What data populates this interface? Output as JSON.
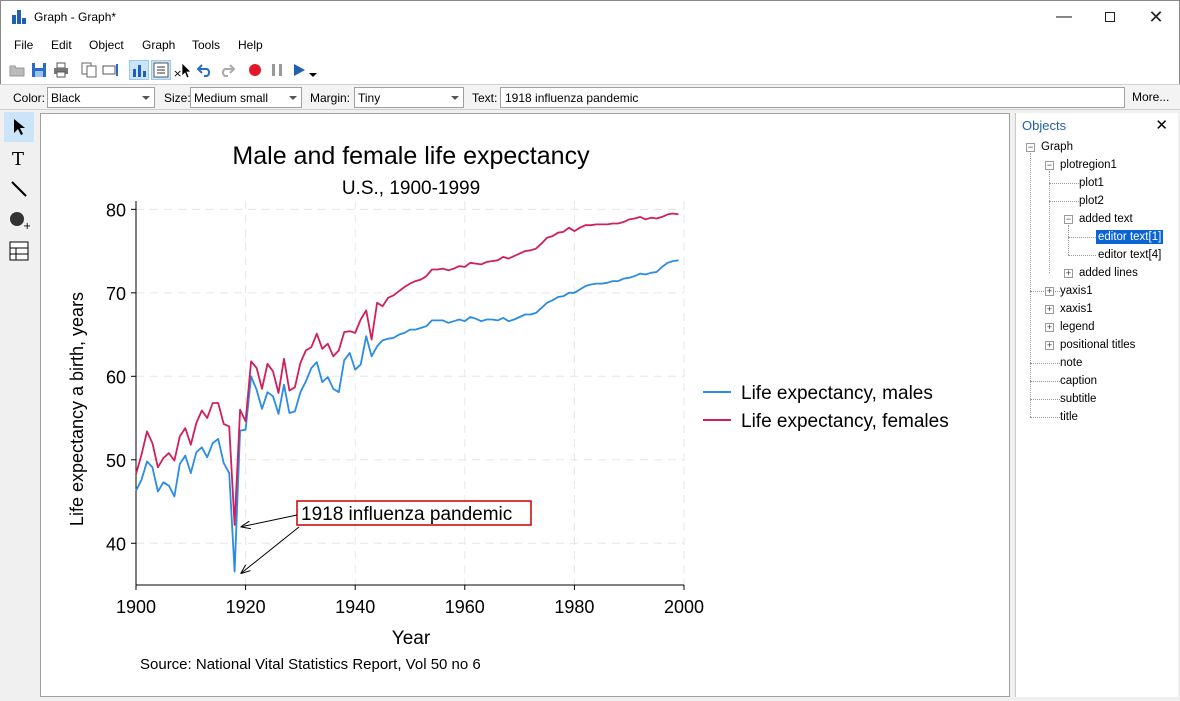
{
  "window": {
    "title": "Graph - Graph*"
  },
  "menu": [
    "File",
    "Edit",
    "Object",
    "Graph",
    "Tools",
    "Help"
  ],
  "properties": {
    "color_label": "Color:",
    "color_value": "Black",
    "size_label": "Size:",
    "size_value": "Medium small",
    "margin_label": "Margin:",
    "margin_value": "Tiny",
    "text_label": "Text:",
    "text_value": "1918 influenza pandemic",
    "more_label": "More..."
  },
  "objects_panel": {
    "header": "Objects",
    "tree": [
      "Graph",
      "plotregion1",
      "plot1",
      "plot2",
      "added text",
      "editor text[1]",
      "editor text[4]",
      "added lines",
      "yaxis1",
      "xaxis1",
      "legend",
      "positional titles",
      "note",
      "caption",
      "subtitle",
      "title"
    ]
  },
  "colors": {
    "males": "#2a8ce6",
    "females": "#d11f5a",
    "accent": "#0a64d4",
    "annotation_box": "#cc0000"
  },
  "chart_data": {
    "type": "line",
    "title": "Male and female life expectancy",
    "subtitle": "U.S., 1900-1999",
    "xlabel": "Year",
    "ylabel": "Life expectancy a birth, years",
    "note": "Source: National Vital Statistics Report, Vol 50 no 6",
    "xlim": [
      1900,
      2000
    ],
    "ylim": [
      35,
      81
    ],
    "xticks": [
      1900,
      1920,
      1940,
      1960,
      1980,
      2000
    ],
    "yticks": [
      40,
      50,
      60,
      70,
      80
    ],
    "grid": true,
    "legend_position": "right",
    "annotation": {
      "text": "1918 influenza pandemic",
      "targets": [
        [
          1918,
          42.2
        ],
        [
          1918,
          36.6
        ]
      ]
    },
    "x": [
      1900,
      1901,
      1902,
      1903,
      1904,
      1905,
      1906,
      1907,
      1908,
      1909,
      1910,
      1911,
      1912,
      1913,
      1914,
      1915,
      1916,
      1917,
      1918,
      1919,
      1920,
      1921,
      1922,
      1923,
      1924,
      1925,
      1926,
      1927,
      1928,
      1929,
      1930,
      1931,
      1932,
      1933,
      1934,
      1935,
      1936,
      1937,
      1938,
      1939,
      1940,
      1941,
      1942,
      1943,
      1944,
      1945,
      1946,
      1947,
      1948,
      1949,
      1950,
      1951,
      1952,
      1953,
      1954,
      1955,
      1956,
      1957,
      1958,
      1959,
      1960,
      1961,
      1962,
      1963,
      1964,
      1965,
      1966,
      1967,
      1968,
      1969,
      1970,
      1971,
      1972,
      1973,
      1974,
      1975,
      1976,
      1977,
      1978,
      1979,
      1980,
      1981,
      1982,
      1983,
      1984,
      1985,
      1986,
      1987,
      1988,
      1989,
      1990,
      1991,
      1992,
      1993,
      1994,
      1995,
      1996,
      1997,
      1998,
      1999
    ],
    "series": [
      {
        "name": "Life expectancy, males",
        "values": [
          46.3,
          47.6,
          49.8,
          49.1,
          46.2,
          47.3,
          46.9,
          45.6,
          49.5,
          50.5,
          48.4,
          50.9,
          51.5,
          50.3,
          52.0,
          52.5,
          49.6,
          48.4,
          36.6,
          53.5,
          53.6,
          60.0,
          58.4,
          56.1,
          58.1,
          57.6,
          55.5,
          59.0,
          55.6,
          55.8,
          58.1,
          59.4,
          61.0,
          61.7,
          59.3,
          59.9,
          58.5,
          58.1,
          61.9,
          62.8,
          60.8,
          61.4,
          64.8,
          62.4,
          63.6,
          64.3,
          64.5,
          64.6,
          65.0,
          65.2,
          65.6,
          65.6,
          65.8,
          66.0,
          66.7,
          66.7,
          66.7,
          66.4,
          66.6,
          66.8,
          66.6,
          67.1,
          66.9,
          66.6,
          66.8,
          66.8,
          66.7,
          67.0,
          66.6,
          66.8,
          67.1,
          67.4,
          67.4,
          67.6,
          68.2,
          68.8,
          69.1,
          69.5,
          69.6,
          70.0,
          70.0,
          70.4,
          70.8,
          71.0,
          71.1,
          71.1,
          71.2,
          71.4,
          71.4,
          71.7,
          71.8,
          72.0,
          72.3,
          72.2,
          72.4,
          72.5,
          73.1,
          73.6,
          73.8,
          73.9
        ]
      },
      {
        "name": "Life expectancy, females",
        "values": [
          48.3,
          50.6,
          53.4,
          52.0,
          49.1,
          50.2,
          50.8,
          49.9,
          52.8,
          53.8,
          51.8,
          54.4,
          55.9,
          55.0,
          56.8,
          56.8,
          54.3,
          54.0,
          42.2,
          56.0,
          54.6,
          61.8,
          61.0,
          58.5,
          61.5,
          60.6,
          58.0,
          62.1,
          58.3,
          58.7,
          61.6,
          63.1,
          63.5,
          65.1,
          63.3,
          63.9,
          62.4,
          63.1,
          65.3,
          65.4,
          65.2,
          66.8,
          67.9,
          64.4,
          68.8,
          68.4,
          69.4,
          69.7,
          70.2,
          70.7,
          71.1,
          71.4,
          71.6,
          72.0,
          72.8,
          72.8,
          72.9,
          72.7,
          72.9,
          73.2,
          73.1,
          73.6,
          73.5,
          73.4,
          73.7,
          73.8,
          73.9,
          74.3,
          74.1,
          74.4,
          74.7,
          75.0,
          75.1,
          75.3,
          75.9,
          76.6,
          76.8,
          77.2,
          77.3,
          77.8,
          77.4,
          77.8,
          78.1,
          78.1,
          78.2,
          78.2,
          78.2,
          78.3,
          78.3,
          78.5,
          78.8,
          78.9,
          79.1,
          78.8,
          79.0,
          78.9,
          79.1,
          79.4,
          79.5,
          79.4
        ]
      }
    ]
  }
}
